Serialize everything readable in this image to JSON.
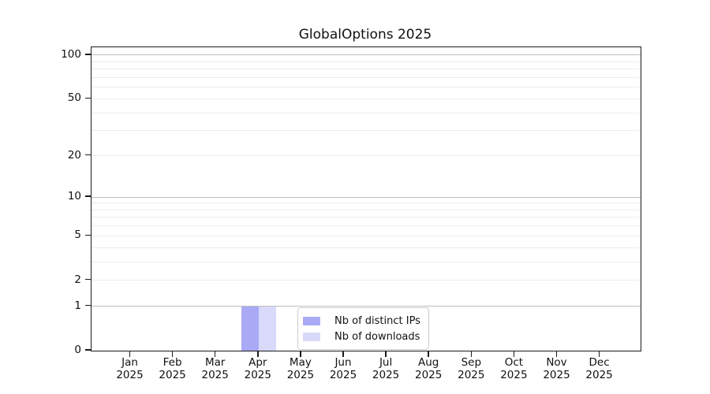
{
  "title": "GlobalOptions 2025",
  "chart_data": {
    "type": "bar",
    "title": "GlobalOptions 2025",
    "categories": [
      "Jan",
      "Feb",
      "Mar",
      "Apr",
      "May",
      "Jun",
      "Jul",
      "Aug",
      "Sep",
      "Oct",
      "Nov",
      "Dec"
    ],
    "category_year": "2025",
    "series": [
      {
        "name": "Nb of distinct IPs",
        "color": "#a9a9f6",
        "values": [
          0,
          0,
          0,
          1,
          0,
          0,
          0,
          0,
          0,
          0,
          0,
          0
        ]
      },
      {
        "name": "Nb of downloads",
        "color": "#d9d9fa",
        "values": [
          0,
          0,
          0,
          1,
          0,
          0,
          0,
          0,
          0,
          0,
          0,
          0
        ]
      }
    ],
    "y_axis": {
      "scale": "log10(1+x)",
      "max": 113,
      "tick_values": [
        0,
        1,
        2,
        5,
        10,
        20,
        50,
        100
      ],
      "major_gridlines": [
        1,
        10,
        100
      ],
      "minor_gridlines": [
        2,
        3,
        4,
        5,
        6,
        7,
        8,
        9,
        20,
        30,
        40,
        50,
        60,
        70,
        80,
        90
      ]
    },
    "legend": {
      "position": "bottom-center",
      "entries": [
        "Nb of distinct IPs",
        "Nb of downloads"
      ]
    },
    "colors": {
      "major_grid": "#bdbdbd",
      "minor_grid": "#ececec",
      "spine": "#1a1a1a",
      "text": "#111111"
    },
    "grid": true,
    "xlabel": "",
    "ylabel": ""
  }
}
